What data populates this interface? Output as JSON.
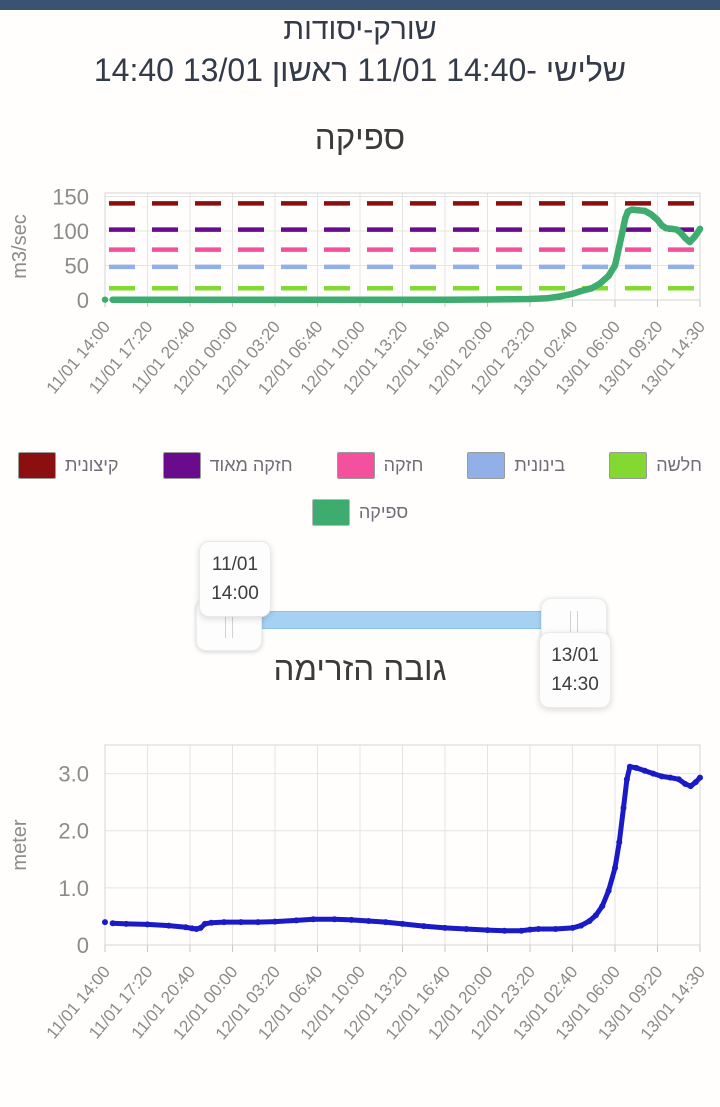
{
  "app": {
    "top_bar_color": "#3b5372"
  },
  "header": {
    "station_title": "שורק-יסודות",
    "date_range": "14:40 13/01 שלישי -14:40 11/01 ראשון"
  },
  "legend": {
    "threshold_items": [
      {
        "label": "קיצונית",
        "color": "#8b0f0f"
      },
      {
        "label": "חזקה מאוד",
        "color": "#6a0b8e"
      },
      {
        "label": "חזקה",
        "color": "#f3519e"
      },
      {
        "label": "בינונית",
        "color": "#92b0e8"
      },
      {
        "label": "חלשה",
        "color": "#83d832"
      }
    ],
    "series_item": {
      "label": "ספיקה",
      "color": "#3fac6f"
    }
  },
  "slider": {
    "start": {
      "date": "11/01",
      "time": "14:00"
    },
    "end": {
      "date": "13/01",
      "time": "14:30"
    }
  },
  "chart_data": [
    {
      "type": "line",
      "title": "ספיקה",
      "ylabel": "m3/sec",
      "ylim": [
        0,
        155
      ],
      "yticks": [
        0,
        50,
        100,
        150
      ],
      "ytick_labels": [
        "0",
        "50",
        "100",
        "150"
      ],
      "grid": true,
      "legend_position": "bottom",
      "x_tick_labels": [
        "11/01 14:00",
        "11/01 17:20",
        "11/01 20:40",
        "12/01 00:00",
        "12/01 03:20",
        "12/01 06:40",
        "12/01 10:00",
        "12/01 13:20",
        "12/01 16:40",
        "12/01 20:00",
        "12/01 23:20",
        "13/01 02:40",
        "13/01 06:00",
        "13/01 09:20",
        "13/01 14:30"
      ],
      "thresholds": [
        {
          "label": "קיצונית",
          "value": 140,
          "color": "#8b0f0f"
        },
        {
          "label": "חזקה מאוד",
          "value": 102,
          "color": "#6a0b8e"
        },
        {
          "label": "חזקה",
          "value": 73,
          "color": "#f3519e"
        },
        {
          "label": "בינונית",
          "value": 48,
          "color": "#92b0e8"
        },
        {
          "label": "חלשה",
          "value": 17,
          "color": "#83d832"
        }
      ],
      "series": [
        {
          "name": "ספיקה",
          "color": "#3fac6f",
          "width": 6.5,
          "marker_r": 3.2,
          "isolated_first_point": true,
          "x": [
            0,
            0.18,
            1,
            2,
            3,
            4,
            5,
            6,
            7,
            8,
            9,
            9.5,
            10,
            10.4,
            10.7,
            11,
            11.2,
            11.45,
            11.65,
            11.85,
            12,
            12.1,
            12.18,
            12.24,
            12.3,
            12.4,
            12.55,
            12.7,
            12.85,
            13,
            13.1,
            13.2,
            13.35,
            13.45,
            13.55,
            13.65,
            13.76,
            13.88,
            14
          ],
          "y": [
            0.5,
            0.5,
            0.5,
            0.5,
            0.5,
            0.5,
            0.5,
            0.5,
            0.5,
            0.5,
            0.7,
            1,
            1.5,
            2.5,
            5,
            9,
            13,
            17,
            24,
            35,
            50,
            78,
            100,
            118,
            128,
            131,
            130,
            129,
            124,
            116,
            108,
            104,
            103,
            102,
            97,
            90,
            84,
            92,
            103
          ]
        }
      ]
    },
    {
      "type": "line",
      "title": "גובה הזרימה",
      "ylabel": "meter",
      "ylim": [
        0,
        3.5
      ],
      "yticks": [
        0,
        1.0,
        2.0,
        3.0
      ],
      "ytick_labels": [
        "0",
        "1.0",
        "2.0",
        "3.0"
      ],
      "grid": true,
      "legend_position": "none",
      "x_tick_labels": [
        "11/01 14:00",
        "11/01 17:20",
        "11/01 20:40",
        "12/01 00:00",
        "12/01 03:20",
        "12/01 06:40",
        "12/01 10:00",
        "12/01 13:20",
        "12/01 16:40",
        "12/01 20:00",
        "12/01 23:20",
        "13/01 02:40",
        "13/01 06:00",
        "13/01 09:20",
        "13/01 14:30"
      ],
      "thresholds": [],
      "series": [
        {
          "name": "גובה הזרימה",
          "color": "#1a1ac6",
          "width": 5,
          "marker_r": 3,
          "isolated_first_point": true,
          "x": [
            0,
            0.18,
            0.5,
            1,
            1.5,
            1.9,
            2.05,
            2.15,
            2.25,
            2.35,
            2.5,
            2.8,
            3.2,
            3.6,
            4,
            4.5,
            4.9,
            5.4,
            5.8,
            6.2,
            6.6,
            7,
            7.5,
            8,
            8.5,
            9,
            9.4,
            9.8,
            10,
            10.2,
            10.6,
            11,
            11.2,
            11.4,
            11.55,
            11.7,
            11.85,
            12,
            12.1,
            12.2,
            12.28,
            12.35,
            12.5,
            12.7,
            12.9,
            13.1,
            13.3,
            13.5,
            13.65,
            13.78,
            13.9,
            14
          ],
          "y": [
            0.4,
            0.38,
            0.37,
            0.36,
            0.34,
            0.31,
            0.29,
            0.28,
            0.3,
            0.37,
            0.39,
            0.4,
            0.4,
            0.4,
            0.41,
            0.43,
            0.45,
            0.45,
            0.44,
            0.42,
            0.4,
            0.37,
            0.33,
            0.3,
            0.28,
            0.26,
            0.25,
            0.25,
            0.27,
            0.28,
            0.28,
            0.3,
            0.34,
            0.42,
            0.52,
            0.68,
            0.95,
            1.35,
            1.8,
            2.4,
            2.9,
            3.12,
            3.1,
            3.05,
            3.0,
            2.95,
            2.93,
            2.9,
            2.82,
            2.78,
            2.85,
            2.93
          ]
        }
      ]
    }
  ]
}
